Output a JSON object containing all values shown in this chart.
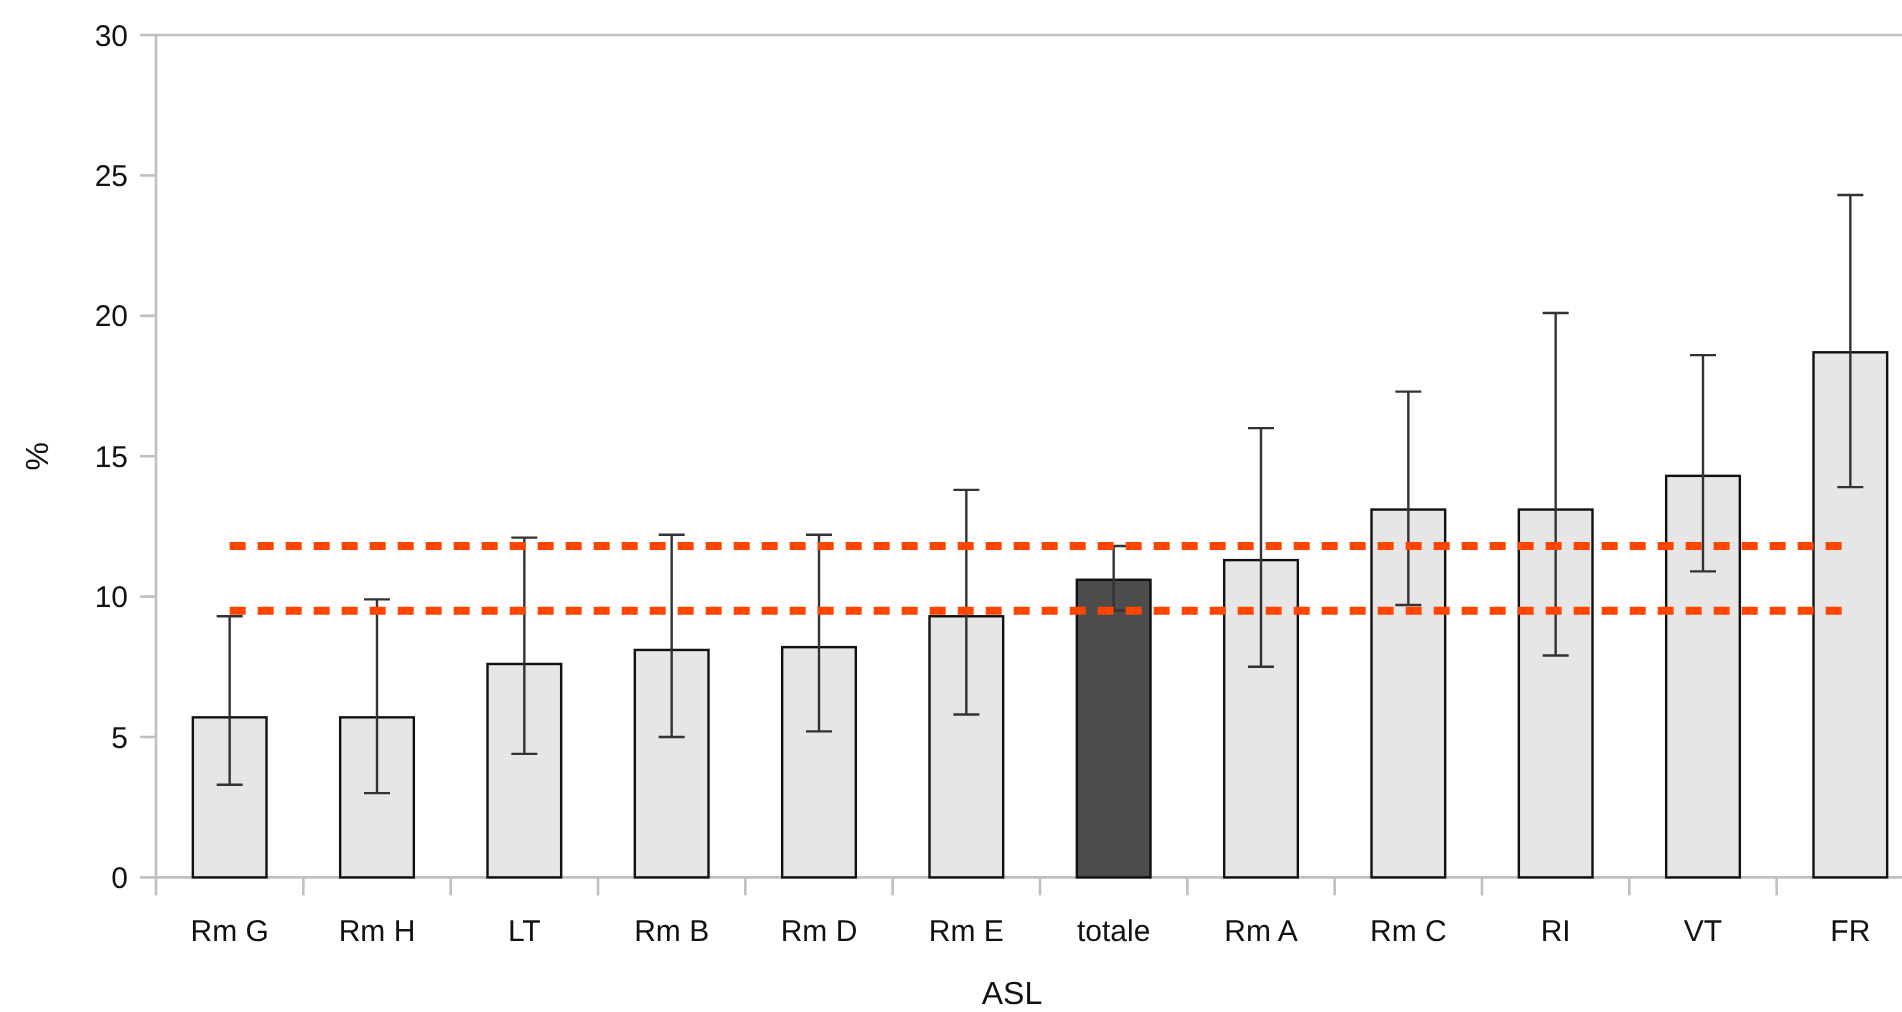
{
  "chart_data": {
    "type": "bar",
    "xlabel": "ASL",
    "ylabel": "%",
    "categories": [
      "Rm G",
      "Rm H",
      "LT",
      "Rm B",
      "Rm D",
      "Rm E",
      "totale",
      "Rm A",
      "Rm C",
      "RI",
      "VT",
      "FR"
    ],
    "values": [
      5.7,
      5.7,
      7.6,
      8.1,
      8.2,
      9.3,
      10.6,
      11.3,
      13.1,
      13.1,
      14.3,
      18.7
    ],
    "colors": [
      "#e6e6e6",
      "#e6e6e6",
      "#e6e6e6",
      "#e6e6e6",
      "#e6e6e6",
      "#e6e6e6",
      "#4d4d4d",
      "#e6e6e6",
      "#e6e6e6",
      "#e6e6e6",
      "#e6e6e6",
      "#e6e6e6"
    ],
    "errors": [
      [
        3.3,
        9.3
      ],
      [
        3.0,
        9.9
      ],
      [
        4.4,
        12.1
      ],
      [
        5.0,
        12.2
      ],
      [
        5.2,
        12.2
      ],
      [
        5.8,
        13.8
      ],
      [
        9.5,
        11.8
      ],
      [
        7.5,
        16.0
      ],
      [
        9.7,
        17.3
      ],
      [
        7.9,
        20.1
      ],
      [
        10.9,
        18.6
      ],
      [
        13.9,
        24.3
      ]
    ],
    "ylim": [
      0,
      30
    ],
    "yticks": [
      0,
      5,
      10,
      15,
      20,
      25,
      30
    ],
    "ref_lines": [
      {
        "axis": "y",
        "value": 11.8,
        "color": "#ff4500",
        "line_style": "dashed"
      },
      {
        "axis": "y",
        "value": 9.5,
        "color": "#ff4500",
        "line_style": "dashed"
      }
    ]
  }
}
